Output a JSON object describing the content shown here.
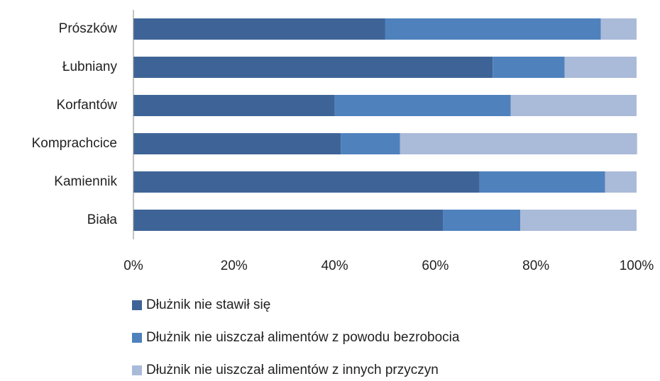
{
  "chart_data": {
    "type": "bar_stacked_horizontal",
    "categories": [
      "Prószków",
      "Łubniany",
      "Korfantów",
      "Komprachcice",
      "Kamiennik",
      "Biała"
    ],
    "series": [
      {
        "name": "Dłużnik nie stawił się",
        "color": "#3e6497",
        "values": [
          50,
          71.4,
          40,
          41.2,
          68.75,
          61.5
        ]
      },
      {
        "name": "Dłużnik nie uiszczał alimentów z powodu bezrobocia",
        "color": "#4f81bd",
        "values": [
          42.9,
          14.3,
          35,
          11.8,
          25,
          15.4
        ]
      },
      {
        "name": "Dłużnik nie uiszczał alimentów z innych przyczyn",
        "color": "#aabad9",
        "values": [
          7.1,
          14.3,
          25,
          47.1,
          6.25,
          23.1
        ]
      }
    ],
    "xlim": [
      0,
      100
    ],
    "xticks": [
      {
        "value": 0,
        "label": "0%"
      },
      {
        "value": 20,
        "label": "20%"
      },
      {
        "value": 40,
        "label": "40%"
      },
      {
        "value": 60,
        "label": "60%"
      },
      {
        "value": 80,
        "label": "80%"
      },
      {
        "value": 100,
        "label": "100%"
      }
    ],
    "legend": "bottom"
  }
}
